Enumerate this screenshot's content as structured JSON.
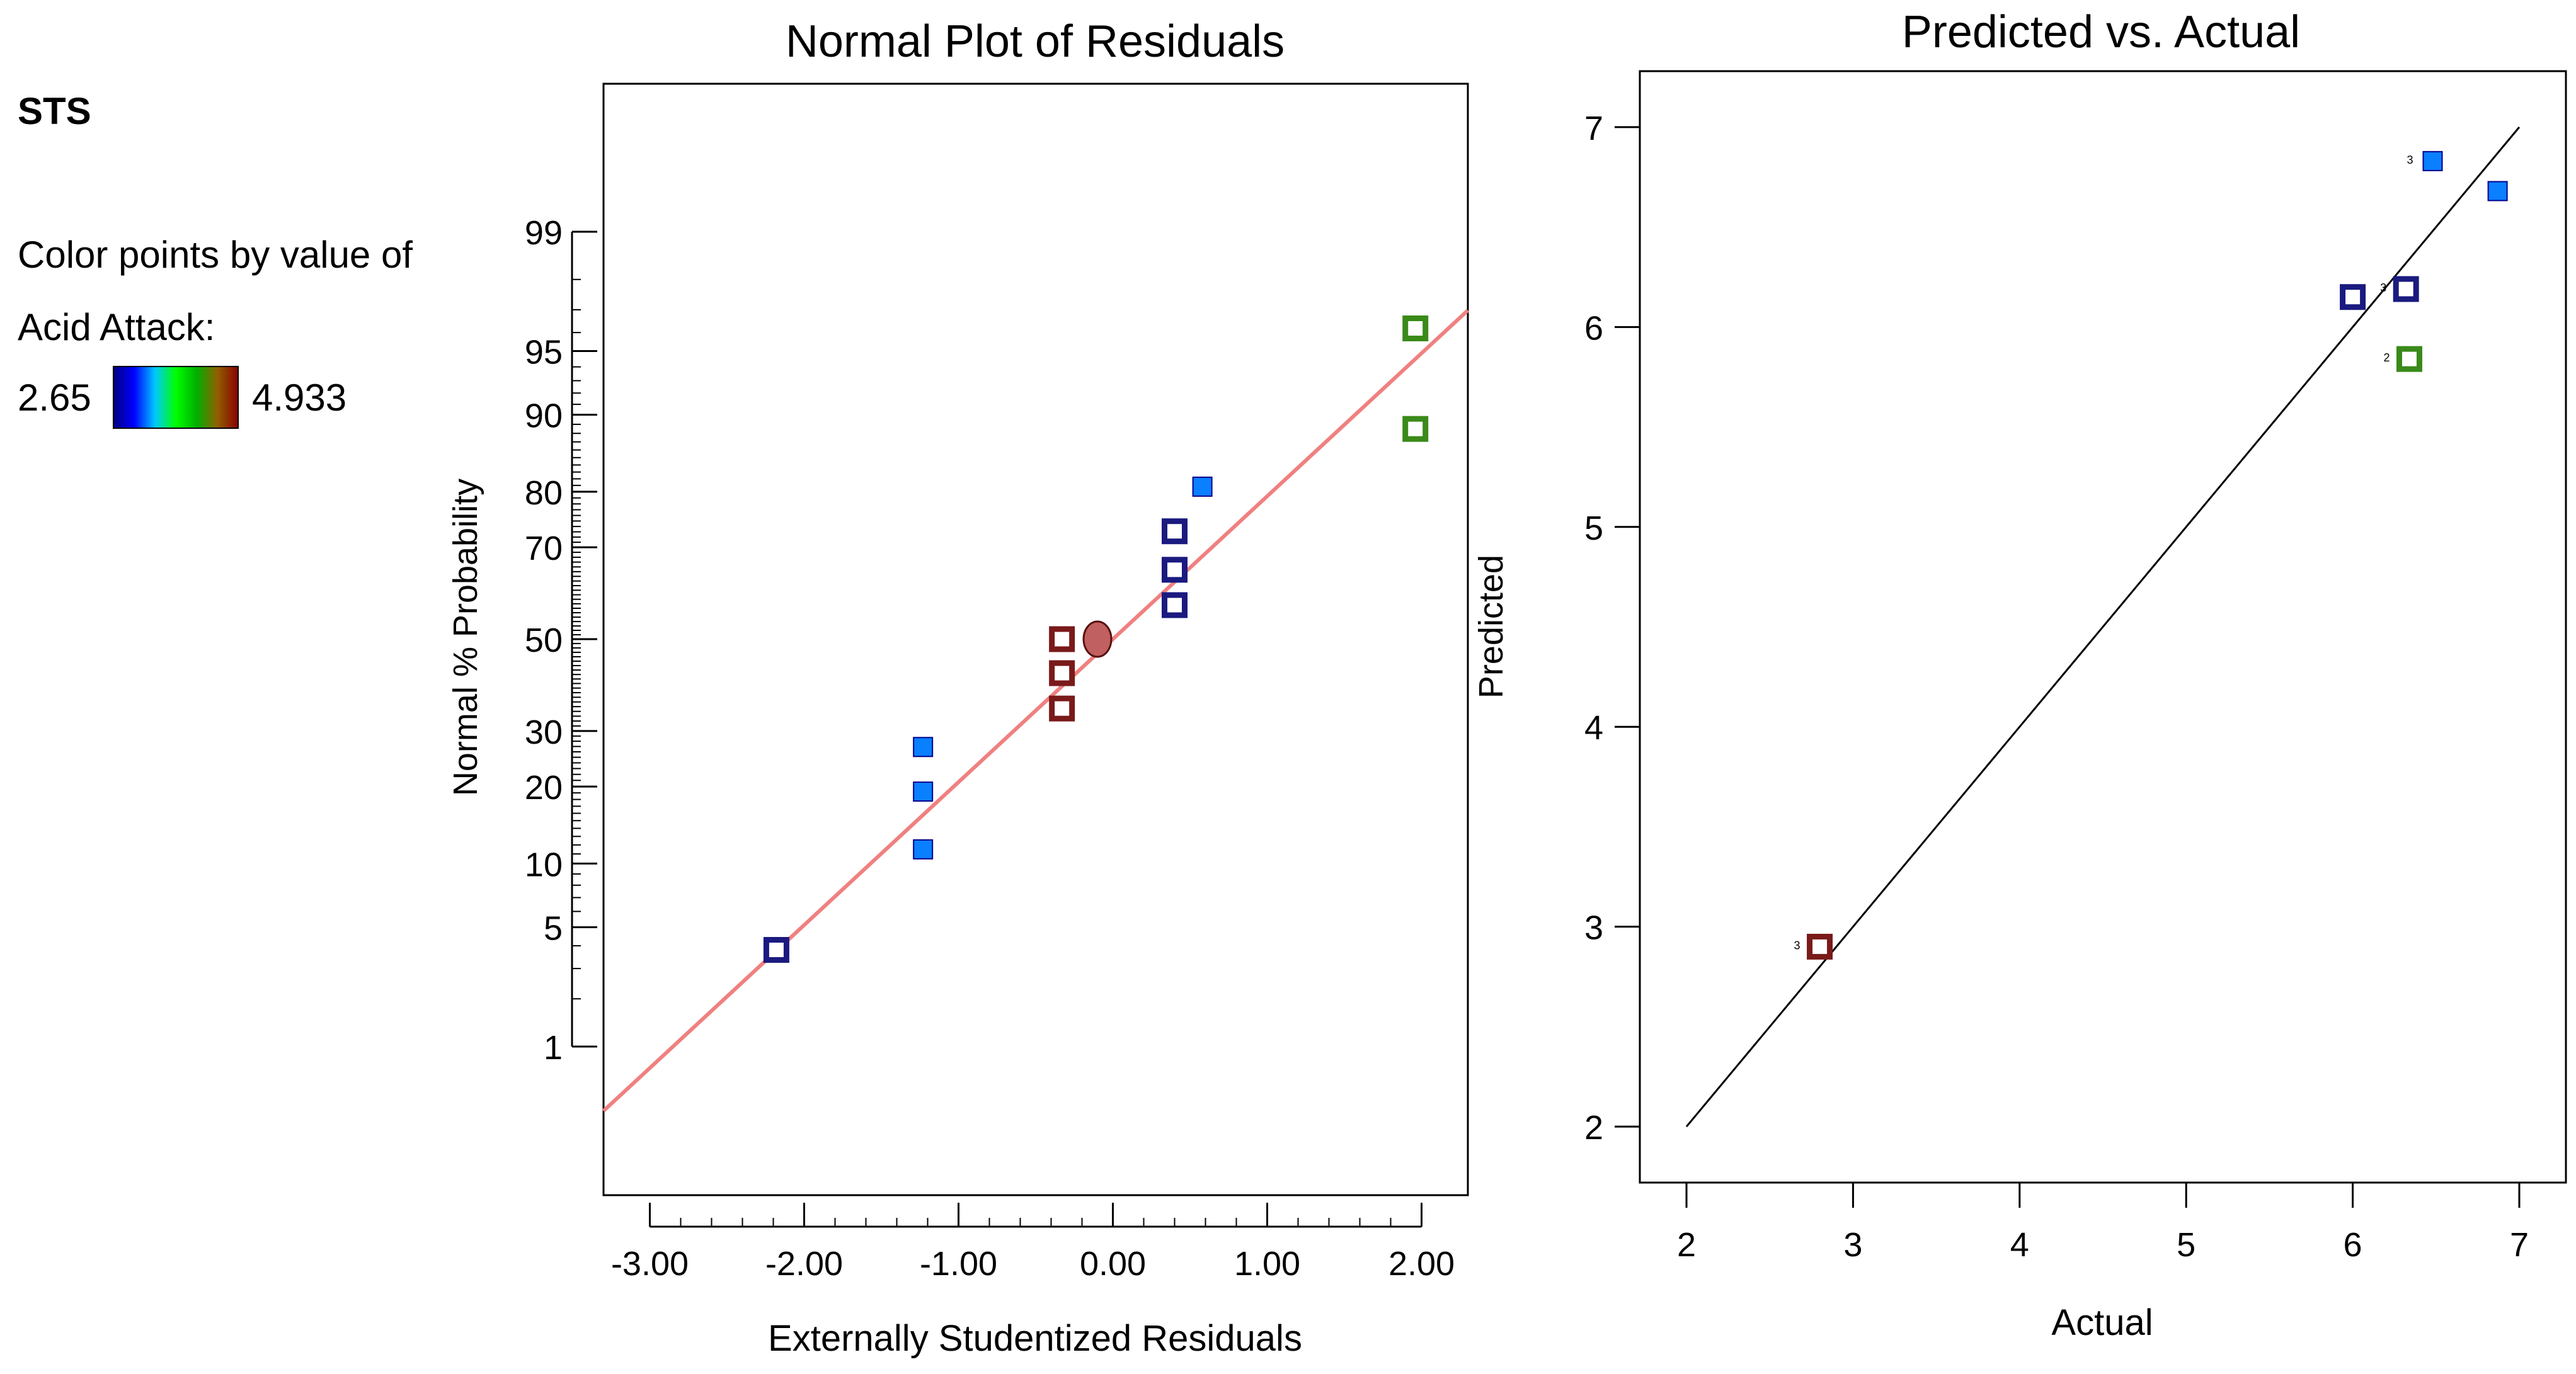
{
  "legend": {
    "label": "STS",
    "color_by_line1": "Color points by value of",
    "color_by_line2": "Acid Attack:",
    "min_value": "2.65",
    "max_value": "4.933",
    "min_color": "#1a1aff",
    "max_color": "#ff1a1a",
    "gradient": [
      "#000080",
      "#0000ff",
      "#00c8ff",
      "#00ff00",
      "#00b000",
      "#906000",
      "#8b0000"
    ]
  },
  "chart_data": [
    {
      "type": "scatter",
      "title": "Normal Plot of Residuals",
      "xlabel": "Externally Studentized Residuals",
      "ylabel": "Normal % Probability",
      "xlim": [
        -3.3,
        2.3
      ],
      "x_ticks": [
        -3,
        -2,
        -1,
        0,
        1,
        2
      ],
      "x_tick_labels": [
        "-3.00",
        "-2.00",
        "-1.00",
        "0.00",
        "1.00",
        "2.00"
      ],
      "y_scale": "normal-probability",
      "y_ticks": [
        1,
        5,
        10,
        20,
        30,
        50,
        70,
        80,
        90,
        95,
        99
      ],
      "y_tick_labels": [
        "1",
        "5",
        "10",
        "20",
        "30",
        "50",
        "70",
        "80",
        "90",
        "95",
        "99"
      ],
      "reference_line": {
        "color": "#f08080",
        "x_at_p1": -2.85,
        "x_at_p99": 2.85
      },
      "points": [
        {
          "x": -2.18,
          "p": 3.8,
          "style": "hollow",
          "color": "#1a1a80"
        },
        {
          "x": -1.23,
          "p": 11.5,
          "style": "filled",
          "color": "#0a7fff"
        },
        {
          "x": -1.23,
          "p": 19.2,
          "style": "filled",
          "color": "#0a7fff"
        },
        {
          "x": -1.23,
          "p": 26.9,
          "style": "filled",
          "color": "#0a7fff"
        },
        {
          "x": -0.33,
          "p": 34.6,
          "style": "hollow",
          "color": "#7a1a1a"
        },
        {
          "x": -0.33,
          "p": 42.3,
          "style": "hollow",
          "color": "#7a1a1a"
        },
        {
          "x": -0.33,
          "p": 50.0,
          "style": "hollow",
          "color": "#7a1a1a"
        },
        {
          "x": 0.4,
          "p": 57.7,
          "style": "hollow",
          "color": "#1a1a80"
        },
        {
          "x": 0.4,
          "p": 65.4,
          "style": "hollow",
          "color": "#1a1a80"
        },
        {
          "x": 0.4,
          "p": 73.1,
          "style": "hollow",
          "color": "#1a1a80"
        },
        {
          "x": 0.58,
          "p": 80.8,
          "style": "filled",
          "color": "#0a7fff"
        },
        {
          "x": 1.96,
          "p": 88.5,
          "style": "hollow",
          "color": "#3a8a1a"
        },
        {
          "x": 1.96,
          "p": 96.2,
          "style": "hollow",
          "color": "#3a8a1a"
        }
      ],
      "center_marker": {
        "x": -0.1,
        "p": 50,
        "color": "#c06060"
      }
    },
    {
      "type": "scatter",
      "title": "Predicted vs. Actual",
      "xlabel": "Actual",
      "ylabel": "Predicted",
      "xlim": [
        1.72,
        7.28
      ],
      "ylim": [
        1.72,
        7.28
      ],
      "x_ticks": [
        2,
        3,
        4,
        5,
        6,
        7
      ],
      "y_ticks": [
        2,
        3,
        4,
        5,
        6,
        7
      ],
      "x_tick_labels": [
        "2",
        "3",
        "4",
        "5",
        "6",
        "7"
      ],
      "y_tick_labels": [
        "2",
        "3",
        "4",
        "5",
        "6",
        "7"
      ],
      "reference_line": {
        "from": [
          2,
          2
        ],
        "to": [
          7,
          7
        ],
        "color": "#000000"
      },
      "points": [
        {
          "x": 2.8,
          "y": 2.9,
          "style": "hollow",
          "color": "#7a1a1a",
          "count": "3"
        },
        {
          "x": 6.0,
          "y": 6.15,
          "style": "hollow",
          "color": "#1a1a80",
          "count": ""
        },
        {
          "x": 6.32,
          "y": 6.19,
          "style": "hollow",
          "color": "#1a1a80",
          "count": "3"
        },
        {
          "x": 6.34,
          "y": 5.84,
          "style": "hollow",
          "color": "#3a8a1a",
          "count": "2"
        },
        {
          "x": 6.48,
          "y": 6.83,
          "style": "filled",
          "color": "#0a7fff",
          "count": "3"
        },
        {
          "x": 6.87,
          "y": 6.68,
          "style": "filled",
          "color": "#0a7fff",
          "count": ""
        }
      ]
    }
  ]
}
